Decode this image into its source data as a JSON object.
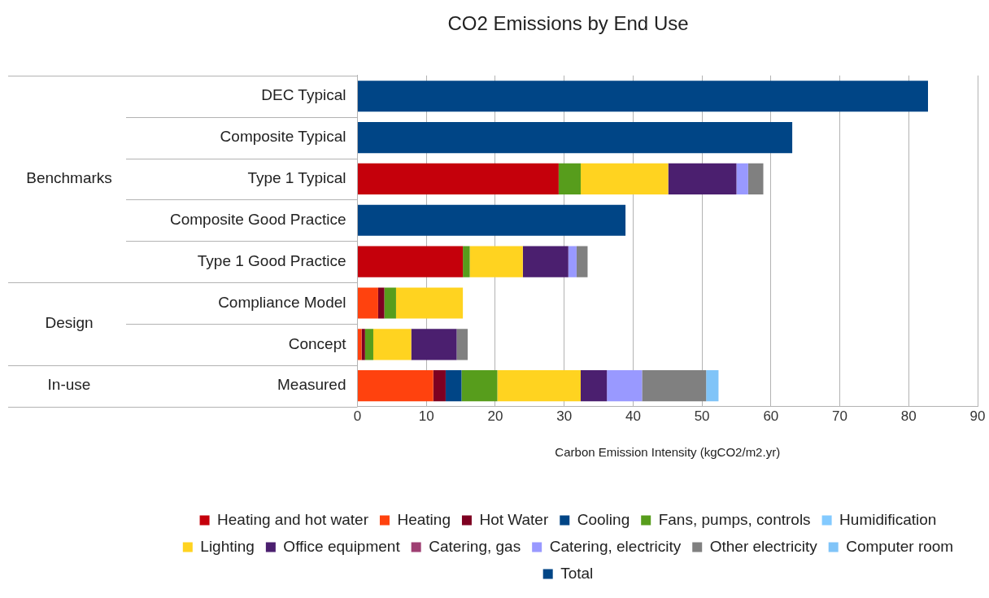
{
  "chart_data": {
    "type": "bar",
    "orientation": "horizontal",
    "stacked": true,
    "title": "CO2 Emissions by End Use",
    "xlabel": "Carbon Emission Intensity (kgCO2/m2.yr)",
    "categories": [
      "DEC Typical",
      "Composite Typical",
      "Type 1 Typical",
      "Composite Good Practice",
      "Type 1 Good Practice",
      "Compliance Model",
      "Concept",
      "Measured"
    ],
    "series": [
      {
        "name": "Heating and hot water",
        "color": "#c5000b",
        "values": [
          null,
          null,
          29.2,
          null,
          15.3,
          null,
          null,
          null
        ]
      },
      {
        "name": "Heating",
        "color": "#ff420e",
        "values": [
          null,
          null,
          null,
          null,
          null,
          3.0,
          0.6,
          11.0
        ]
      },
      {
        "name": "Hot Water",
        "color": "#7e0021",
        "values": [
          null,
          null,
          null,
          null,
          null,
          0.9,
          0.5,
          1.8
        ]
      },
      {
        "name": "Cooling",
        "color": "#004586",
        "values": [
          null,
          null,
          null,
          null,
          null,
          null,
          null,
          2.3
        ]
      },
      {
        "name": "Fans, pumps, controls",
        "color": "#579d1c",
        "values": [
          null,
          null,
          3.2,
          null,
          1.0,
          1.7,
          1.2,
          5.2
        ]
      },
      {
        "name": "Humidification",
        "color": "#83caff",
        "values": [
          null,
          null,
          null,
          null,
          null,
          null,
          null,
          null
        ]
      },
      {
        "name": "Lighting",
        "color": "#ffd320",
        "values": [
          null,
          null,
          12.7,
          null,
          7.7,
          9.7,
          5.5,
          12.1
        ]
      },
      {
        "name": "Office equipment",
        "color": "#4b1f6f",
        "values": [
          null,
          null,
          9.9,
          null,
          6.6,
          null,
          6.6,
          3.8
        ]
      },
      {
        "name": "Catering, gas",
        "color": "#9e3f72",
        "values": [
          null,
          null,
          null,
          null,
          null,
          null,
          null,
          null
        ]
      },
      {
        "name": "Catering, electricity",
        "color": "#9999ff",
        "values": [
          null,
          null,
          1.7,
          null,
          1.2,
          null,
          null,
          5.1
        ]
      },
      {
        "name": "Other electricity",
        "color": "#808080",
        "values": [
          null,
          null,
          2.2,
          null,
          1.6,
          null,
          1.6,
          9.3
        ]
      },
      {
        "name": "Computer room",
        "color": "#80c4f8",
        "values": [
          null,
          null,
          null,
          null,
          null,
          null,
          null,
          1.8
        ]
      },
      {
        "name": "Total",
        "color": "#004586",
        "values": [
          82.8,
          63.1,
          null,
          38.9,
          null,
          null,
          null,
          null
        ]
      }
    ],
    "xlim": [
      0,
      90
    ],
    "xticks": [
      0,
      10,
      20,
      30,
      40,
      50,
      60,
      70,
      80,
      90
    ],
    "grid": "x",
    "legend": "bottom",
    "annotations": [
      "Benchmarks",
      "Design",
      "In-use"
    ]
  }
}
